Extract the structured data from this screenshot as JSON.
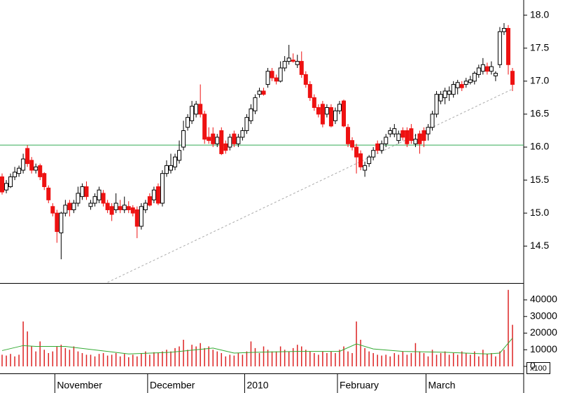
{
  "chart_data": [
    {
      "type": "candlestick",
      "categories": [
        null,
        null,
        null,
        null,
        null,
        null,
        null,
        null,
        null,
        null,
        null,
        null,
        null,
        "November",
        null,
        null,
        null,
        null,
        null,
        null,
        null,
        null,
        null,
        null,
        null,
        null,
        null,
        null,
        null,
        null,
        null,
        null,
        null,
        null,
        null,
        "December",
        null,
        null,
        null,
        null,
        null,
        null,
        null,
        null,
        null,
        null,
        null,
        null,
        null,
        null,
        null,
        null,
        null,
        null,
        null,
        null,
        null,
        null,
        "2010",
        null,
        null,
        null,
        null,
        null,
        null,
        null,
        null,
        null,
        null,
        null,
        null,
        null,
        null,
        null,
        null,
        null,
        null,
        null,
        null,
        null,
        "February",
        null,
        null,
        null,
        null,
        null,
        null,
        null,
        null,
        null,
        null,
        null,
        null,
        null,
        null,
        null,
        null,
        null,
        null,
        null,
        null,
        "March",
        null,
        null,
        null,
        null,
        null,
        null,
        null,
        null,
        null,
        null,
        null,
        null,
        null,
        null,
        null,
        null,
        null,
        null,
        null,
        null
      ],
      "ohlc": [
        [
          15.55,
          15.6,
          15.28,
          15.32
        ],
        [
          15.35,
          15.5,
          15.3,
          15.45
        ],
        [
          15.4,
          15.6,
          15.38,
          15.55
        ],
        [
          15.55,
          15.7,
          15.5,
          15.62
        ],
        [
          15.6,
          15.72,
          15.55,
          15.68
        ],
        [
          15.65,
          15.9,
          15.6,
          15.82
        ],
        [
          15.98,
          16.03,
          15.7,
          15.75
        ],
        [
          15.8,
          15.85,
          15.6,
          15.65
        ],
        [
          15.65,
          15.75,
          15.6,
          15.7
        ],
        [
          15.72,
          15.75,
          15.5,
          15.55
        ],
        [
          15.6,
          15.62,
          15.35,
          15.4
        ],
        [
          15.38,
          15.42,
          15.15,
          15.2
        ],
        [
          15.1,
          15.15,
          14.95,
          15.0
        ],
        [
          15.0,
          15.05,
          14.55,
          14.72
        ],
        [
          14.7,
          15.02,
          14.3,
          15.0
        ],
        [
          15.0,
          15.2,
          14.95,
          15.12
        ],
        [
          15.15,
          15.2,
          14.95,
          15.05
        ],
        [
          15.05,
          15.2,
          15.0,
          15.15
        ],
        [
          15.15,
          15.4,
          15.1,
          15.3
        ],
        [
          15.25,
          15.45,
          15.2,
          15.4
        ],
        [
          15.4,
          15.48,
          15.2,
          15.25
        ],
        [
          15.1,
          15.2,
          15.05,
          15.15
        ],
        [
          15.15,
          15.3,
          15.1,
          15.25
        ],
        [
          15.2,
          15.4,
          15.15,
          15.35
        ],
        [
          15.3,
          15.35,
          15.1,
          15.15
        ],
        [
          15.15,
          15.2,
          15.0,
          15.05
        ],
        [
          15.1,
          15.15,
          14.88,
          14.98
        ],
        [
          15.05,
          15.3,
          15.0,
          15.15
        ],
        [
          15.1,
          15.2,
          15.0,
          15.05
        ],
        [
          15.05,
          15.25,
          15.0,
          15.12
        ],
        [
          15.1,
          15.18,
          15.0,
          15.05
        ],
        [
          15.08,
          15.12,
          14.95,
          15.0
        ],
        [
          15.05,
          15.1,
          14.62,
          14.8
        ],
        [
          14.8,
          15.15,
          14.75,
          15.1
        ],
        [
          15.05,
          15.2,
          15.0,
          15.15
        ],
        [
          15.25,
          15.3,
          15.1,
          15.12
        ],
        [
          15.2,
          15.4,
          15.15,
          15.35
        ],
        [
          15.4,
          15.45,
          15.12,
          15.15
        ],
        [
          15.15,
          15.65,
          15.1,
          15.6
        ],
        [
          15.6,
          15.8,
          15.55,
          15.72
        ],
        [
          15.65,
          15.9,
          15.6,
          15.72
        ],
        [
          15.7,
          15.9,
          15.65,
          15.85
        ],
        [
          15.8,
          16.1,
          15.75,
          15.95
        ],
        [
          16.0,
          16.4,
          15.95,
          16.25
        ],
        [
          16.3,
          16.5,
          16.25,
          16.45
        ],
        [
          16.4,
          16.7,
          16.35,
          16.62
        ],
        [
          16.5,
          16.7,
          16.45,
          16.65
        ],
        [
          16.65,
          16.95,
          16.45,
          16.5
        ],
        [
          16.5,
          16.55,
          16.05,
          16.12
        ],
        [
          16.15,
          16.3,
          16.05,
          16.1
        ],
        [
          16.2,
          16.3,
          16.0,
          16.05
        ],
        [
          16.05,
          16.2,
          16.0,
          16.15
        ],
        [
          16.25,
          16.3,
          15.88,
          15.9
        ],
        [
          16.05,
          16.1,
          15.9,
          15.95
        ],
        [
          16.0,
          16.2,
          15.95,
          16.15
        ],
        [
          16.2,
          16.25,
          16.0,
          16.05
        ],
        [
          16.05,
          16.2,
          16.0,
          16.15
        ],
        [
          16.15,
          16.3,
          16.1,
          16.25
        ],
        [
          16.25,
          16.5,
          16.2,
          16.45
        ],
        [
          16.4,
          16.65,
          16.35,
          16.58
        ],
        [
          16.55,
          16.8,
          16.5,
          16.75
        ],
        [
          16.8,
          16.9,
          16.75,
          16.85
        ],
        [
          16.85,
          16.9,
          16.78,
          16.8
        ],
        [
          16.95,
          17.2,
          16.9,
          17.15
        ],
        [
          17.15,
          17.2,
          17.0,
          17.05
        ],
        [
          17.05,
          17.1,
          16.95,
          17.0
        ],
        [
          17.0,
          17.3,
          16.98,
          17.2
        ],
        [
          17.2,
          17.38,
          17.15,
          17.3
        ],
        [
          17.3,
          17.55,
          17.25,
          17.35
        ],
        [
          17.32,
          17.42,
          17.28,
          17.3
        ],
        [
          17.25,
          17.4,
          17.2,
          17.3
        ],
        [
          17.3,
          17.45,
          17.05,
          17.1
        ],
        [
          17.1,
          17.15,
          16.9,
          16.95
        ],
        [
          16.95,
          17.0,
          16.7,
          16.75
        ],
        [
          16.75,
          16.8,
          16.55,
          16.6
        ],
        [
          16.6,
          16.65,
          16.45,
          16.5
        ],
        [
          16.65,
          16.7,
          16.3,
          16.35
        ],
        [
          16.5,
          16.65,
          16.45,
          16.6
        ],
        [
          16.6,
          16.65,
          16.3,
          16.32
        ],
        [
          16.4,
          16.6,
          16.35,
          16.55
        ],
        [
          16.55,
          16.7,
          16.5,
          16.65
        ],
        [
          16.7,
          16.72,
          16.3,
          16.32
        ],
        [
          16.3,
          16.35,
          16.0,
          16.05
        ],
        [
          16.1,
          16.15,
          15.95,
          16.0
        ],
        [
          16.0,
          16.05,
          15.6,
          15.85
        ],
        [
          15.9,
          15.95,
          15.65,
          15.7
        ],
        [
          15.65,
          15.78,
          15.55,
          15.72
        ],
        [
          15.75,
          15.88,
          15.7,
          15.85
        ],
        [
          15.85,
          16.0,
          15.8,
          15.95
        ],
        [
          16.05,
          16.1,
          15.9,
          15.95
        ],
        [
          15.95,
          16.1,
          15.9,
          16.05
        ],
        [
          16.05,
          16.2,
          16.0,
          16.15
        ],
        [
          16.2,
          16.3,
          16.15,
          16.25
        ],
        [
          16.2,
          16.35,
          16.15,
          16.28
        ],
        [
          16.1,
          16.25,
          16.05,
          16.2
        ],
        [
          16.25,
          16.3,
          16.1,
          16.15
        ],
        [
          16.25,
          16.3,
          16.0,
          16.05
        ],
        [
          16.28,
          16.35,
          16.05,
          16.1
        ],
        [
          16.05,
          16.2,
          16.0,
          16.12
        ],
        [
          16.2,
          16.25,
          15.9,
          16.05
        ],
        [
          16.25,
          16.3,
          16.0,
          16.1
        ],
        [
          16.2,
          16.35,
          16.1,
          16.3
        ],
        [
          16.3,
          16.55,
          16.25,
          16.5
        ],
        [
          16.5,
          16.85,
          16.45,
          16.8
        ],
        [
          16.7,
          16.85,
          16.65,
          16.8
        ],
        [
          16.75,
          16.9,
          16.65,
          16.85
        ],
        [
          16.8,
          16.92,
          16.7,
          16.85
        ],
        [
          16.8,
          17.0,
          16.75,
          16.95
        ],
        [
          16.9,
          17.02,
          16.8,
          16.98
        ],
        [
          16.95,
          17.0,
          16.85,
          16.9
        ],
        [
          16.95,
          17.05,
          16.9,
          17.0
        ],
        [
          16.98,
          17.08,
          16.95,
          17.02
        ],
        [
          17.0,
          17.15,
          16.95,
          17.12
        ],
        [
          17.1,
          17.25,
          17.05,
          17.2
        ],
        [
          17.15,
          17.35,
          17.1,
          17.25
        ],
        [
          17.22,
          17.28,
          17.1,
          17.15
        ],
        [
          17.15,
          17.3,
          17.1,
          17.22
        ],
        [
          17.08,
          17.15,
          17.0,
          17.12
        ],
        [
          17.25,
          17.82,
          17.2,
          17.75
        ],
        [
          17.75,
          17.88,
          17.7,
          17.8
        ],
        [
          17.8,
          17.85,
          17.1,
          17.25
        ],
        [
          17.15,
          17.2,
          16.85,
          16.95
        ]
      ],
      "up_color": "#ffffff",
      "down_color": "#ee1111",
      "outline_color": "#000000",
      "ylim": [
        13.94,
        18.23
      ],
      "yticks": [
        14.5,
        {
          "value": 15,
          "label": "15.0"
        },
        15.5,
        {
          "value": 16,
          "label": "16.0"
        },
        16.5,
        {
          "value": 17,
          "label": "17.0"
        },
        17.5,
        {
          "value": 18,
          "label": "18.0"
        }
      ],
      "hline": 16.03,
      "hline_color": "#33aa55",
      "trendline": {
        "x": [
          25,
          121
        ],
        "values": [
          13.95,
          16.88
        ],
        "color": "#aaaaaa"
      }
    },
    {
      "type": "volume",
      "values": [
        7000,
        6500,
        7500,
        6000,
        7000,
        27000,
        21000,
        12000,
        9000,
        15000,
        10000,
        8000,
        9000,
        12000,
        13000,
        11000,
        10000,
        12000,
        9000,
        8000,
        7000,
        7000,
        6000,
        7500,
        8000,
        6500,
        7000,
        8000,
        6000,
        7500,
        5500,
        7000,
        6000,
        8000,
        9000,
        7000,
        8500,
        8000,
        9000,
        10000,
        9000,
        11000,
        12000,
        16000,
        10000,
        13000,
        12000,
        14000,
        11000,
        12000,
        10000,
        9000,
        8000,
        6000,
        7000,
        6500,
        8000,
        7000,
        9000,
        15000,
        11000,
        8000,
        12000,
        10000,
        9000,
        9000,
        12000,
        10000,
        9000,
        11000,
        13000,
        12000,
        10000,
        9000,
        8000,
        7000,
        9000,
        8000,
        9000,
        8000,
        10000,
        12000,
        9000,
        8000,
        27000,
        16000,
        11000,
        9000,
        8000,
        7000,
        6500,
        7000,
        6000,
        8000,
        7000,
        9000,
        7000,
        8000,
        14000,
        9000,
        8000,
        6000,
        10000,
        7000,
        8000,
        9000,
        7000,
        8000,
        7000,
        9000,
        8000,
        7000,
        9000,
        6000,
        10000,
        7500,
        8000,
        6000,
        9000,
        10000,
        46000,
        25000
      ],
      "color": "#dd2222",
      "ylim": [
        0,
        49700
      ],
      "yticks": [
        0,
        10000,
        20000,
        30000,
        40000
      ],
      "moving_average": {
        "x": [
          0,
          5,
          8,
          15,
          25,
          30,
          40,
          50,
          55,
          60,
          70,
          80,
          84,
          88,
          95,
          105,
          115,
          118,
          120,
          121
        ],
        "values": [
          9500,
          12500,
          12000,
          12000,
          9000,
          7500,
          8500,
          11000,
          8000,
          8500,
          9000,
          9000,
          13500,
          10500,
          9000,
          8500,
          7500,
          8000,
          14000,
          17000
        ],
        "color": "#33aa33"
      },
      "unit_label": "x100"
    }
  ]
}
